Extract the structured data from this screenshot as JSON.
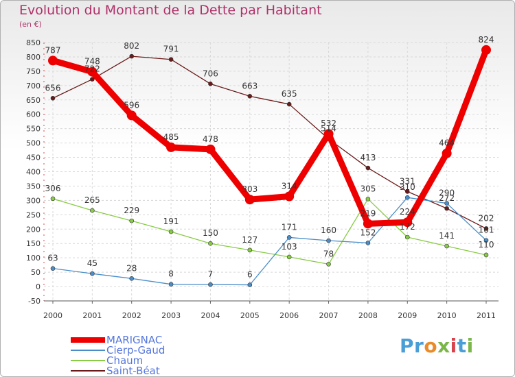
{
  "title": "Evolution du Montant de la Dette par Habitant",
  "unit_label": "(en €)",
  "logo": {
    "text": "Proxiti"
  },
  "chart_data": {
    "type": "line",
    "title": "Evolution du Montant de la Dette par Habitant",
    "subtitle": "(en €)",
    "x": [
      "2000",
      "2001",
      "2002",
      "2003",
      "2004",
      "2005",
      "2006",
      "2007",
      "2008",
      "2009",
      "2010",
      "2011"
    ],
    "ylim": [
      -50,
      850
    ],
    "yticks": [
      -50,
      0,
      50,
      100,
      150,
      200,
      250,
      300,
      350,
      400,
      450,
      500,
      550,
      600,
      650,
      700,
      750,
      800,
      850
    ],
    "grid": true,
    "legend_position": "bottom-left",
    "series": [
      {
        "name": "MARIGNAC",
        "color": "#ee0000",
        "values": [
          787,
          748,
          596,
          485,
          478,
          303,
          314,
          532,
          219,
          224,
          464,
          824
        ],
        "labels": [
          "787",
          "748",
          "596",
          "485",
          "478",
          "303",
          "314",
          "532",
          "219",
          "224",
          "464",
          "824"
        ]
      },
      {
        "name": "Cierp-Gaud",
        "color": "#4a8ec9",
        "values": [
          63,
          45,
          28,
          8,
          7,
          6,
          171,
          160,
          152,
          310,
          290,
          161
        ],
        "labels": [
          "63",
          "45",
          "28",
          "8",
          "7",
          "6",
          "171",
          "160",
          "152",
          "310",
          "290",
          "161"
        ]
      },
      {
        "name": "Chaum",
        "color": "#88cc44",
        "values": [
          306,
          265,
          229,
          191,
          150,
          127,
          103,
          78,
          305,
          172,
          141,
          110
        ],
        "labels": [
          "306",
          "265",
          "229",
          "191",
          "150",
          "127",
          "103",
          "78",
          "305",
          "172",
          "141",
          "110"
        ]
      },
      {
        "name": "Saint-Béat",
        "color": "#6b1a1a",
        "values": [
          656,
          722,
          802,
          791,
          706,
          663,
          635,
          514,
          413,
          331,
          272,
          202
        ],
        "labels": [
          "656",
          "722",
          "802",
          "791",
          "706",
          "663",
          "635",
          "514",
          "413",
          "331",
          "272",
          "202"
        ]
      }
    ]
  }
}
